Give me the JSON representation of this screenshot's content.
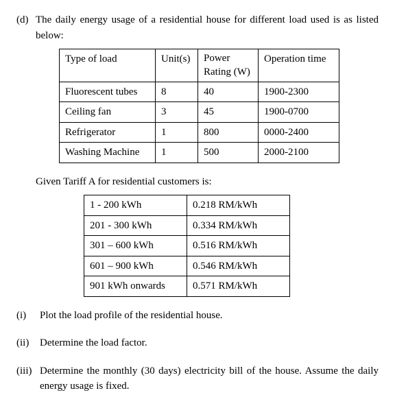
{
  "question": {
    "label": "(d)",
    "intro": "The daily energy usage of a residential house for different load used is as listed below:"
  },
  "loadTable": {
    "headers": {
      "col1": "Type of load",
      "col2": "Unit(s)",
      "col3_line1": "Power",
      "col3_line2": "Rating (W)",
      "col4": "Operation time"
    },
    "rows": [
      {
        "type": "Fluorescent tubes",
        "units": "8",
        "power": "40",
        "time": "1900-2300"
      },
      {
        "type": "Ceiling fan",
        "units": "3",
        "power": "45",
        "time": "1900-0700"
      },
      {
        "type": "Refrigerator",
        "units": "1",
        "power": "800",
        "time": "0000-2400"
      },
      {
        "type": "Washing Machine",
        "units": "1",
        "power": "500",
        "time": "2000-2100"
      }
    ]
  },
  "tariff": {
    "intro": "Given Tariff A for residential customers is:",
    "rows": [
      {
        "range": "1 - 200 kWh",
        "rate": "0.218 RM/kWh"
      },
      {
        "range": "201 - 300 kWh",
        "rate": "0.334 RM/kWh"
      },
      {
        "range": "301 – 600 kWh",
        "rate": "0.516 RM/kWh"
      },
      {
        "range": "601 – 900 kWh",
        "rate": "0.546 RM/kWh"
      },
      {
        "range": "901 kWh onwards",
        "rate": "0.571 RM/kWh"
      }
    ]
  },
  "subparts": {
    "i": {
      "label": "(i)",
      "text": "Plot the load profile of the residential house."
    },
    "ii": {
      "label": "(ii)",
      "text": "Determine the load factor."
    },
    "iii": {
      "label": "(iii)",
      "text": "Determine the monthly (30 days) electricity bill of the house. Assume the daily energy usage is fixed."
    }
  }
}
